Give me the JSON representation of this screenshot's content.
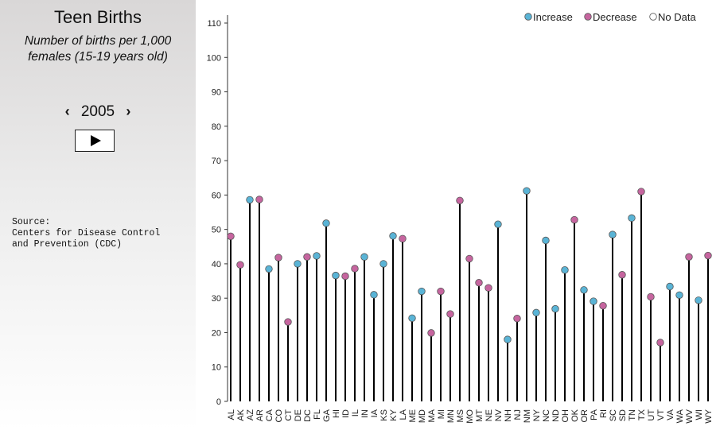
{
  "sidebar": {
    "title": "Teen Births",
    "subtitle_line1": "Number of births per 1,000",
    "subtitle_line2": "females (15-19 years old)",
    "prev_label": "‹",
    "next_label": "›",
    "year": "2005",
    "play_icon": "play-icon",
    "source": "Source:\nCenters for Disease Control\nand Prevention (CDC)"
  },
  "chart_data": {
    "type": "lollipop",
    "ylim": [
      0,
      110
    ],
    "yticks": [
      0,
      10,
      20,
      30,
      40,
      50,
      60,
      70,
      80,
      90,
      100,
      110
    ],
    "legend": [
      {
        "label": "Increase",
        "color": "#5ab4d6"
      },
      {
        "label": "Decrease",
        "color": "#c6659f"
      },
      {
        "label": "No Data",
        "color": "#ffffff"
      }
    ],
    "legend_position": "top-right",
    "points": [
      {
        "state": "AL",
        "value": 48,
        "status": "Decrease"
      },
      {
        "state": "AK",
        "value": 39.7,
        "status": "Decrease"
      },
      {
        "state": "AZ",
        "value": 58.6,
        "status": "Increase"
      },
      {
        "state": "AR",
        "value": 58.7,
        "status": "Decrease"
      },
      {
        "state": "CA",
        "value": 38.5,
        "status": "Increase"
      },
      {
        "state": "CO",
        "value": 41.8,
        "status": "Decrease"
      },
      {
        "state": "CT",
        "value": 23.1,
        "status": "Decrease"
      },
      {
        "state": "DE",
        "value": 40,
        "status": "Increase"
      },
      {
        "state": "DC",
        "value": 42,
        "status": "Decrease"
      },
      {
        "state": "FL",
        "value": 42.3,
        "status": "Increase"
      },
      {
        "state": "GA",
        "value": 51.8,
        "status": "Increase"
      },
      {
        "state": "HI",
        "value": 36.6,
        "status": "Increase"
      },
      {
        "state": "ID",
        "value": 36.4,
        "status": "Decrease"
      },
      {
        "state": "IL",
        "value": 38.6,
        "status": "Decrease"
      },
      {
        "state": "IN",
        "value": 42,
        "status": "Increase"
      },
      {
        "state": "IA",
        "value": 31,
        "status": "Increase"
      },
      {
        "state": "KS",
        "value": 40,
        "status": "Increase"
      },
      {
        "state": "KY",
        "value": 48.1,
        "status": "Increase"
      },
      {
        "state": "LA",
        "value": 47.3,
        "status": "Decrease"
      },
      {
        "state": "ME",
        "value": 24.2,
        "status": "Increase"
      },
      {
        "state": "MD",
        "value": 32,
        "status": "Increase"
      },
      {
        "state": "MA",
        "value": 19.9,
        "status": "Decrease"
      },
      {
        "state": "MI",
        "value": 32,
        "status": "Decrease"
      },
      {
        "state": "MN",
        "value": 25.4,
        "status": "Decrease"
      },
      {
        "state": "MS",
        "value": 58.4,
        "status": "Decrease"
      },
      {
        "state": "MO",
        "value": 41.5,
        "status": "Decrease"
      },
      {
        "state": "MT",
        "value": 34.5,
        "status": "Decrease"
      },
      {
        "state": "NE",
        "value": 33,
        "status": "Decrease"
      },
      {
        "state": "NV",
        "value": 51.5,
        "status": "Increase"
      },
      {
        "state": "NH",
        "value": 18,
        "status": "Increase"
      },
      {
        "state": "NJ",
        "value": 24.1,
        "status": "Decrease"
      },
      {
        "state": "NM",
        "value": 61.2,
        "status": "Increase"
      },
      {
        "state": "NY",
        "value": 25.8,
        "status": "Increase"
      },
      {
        "state": "NC",
        "value": 46.8,
        "status": "Increase"
      },
      {
        "state": "ND",
        "value": 26.9,
        "status": "Increase"
      },
      {
        "state": "OH",
        "value": 38.2,
        "status": "Increase"
      },
      {
        "state": "OK",
        "value": 52.8,
        "status": "Decrease"
      },
      {
        "state": "OR",
        "value": 32.4,
        "status": "Increase"
      },
      {
        "state": "PA",
        "value": 29.1,
        "status": "Increase"
      },
      {
        "state": "RI",
        "value": 27.8,
        "status": "Decrease"
      },
      {
        "state": "SC",
        "value": 48.5,
        "status": "Increase"
      },
      {
        "state": "SD",
        "value": 36.8,
        "status": "Decrease"
      },
      {
        "state": "TN",
        "value": 53.3,
        "status": "Increase"
      },
      {
        "state": "TX",
        "value": 61,
        "status": "Decrease"
      },
      {
        "state": "UT",
        "value": 30.4,
        "status": "Decrease"
      },
      {
        "state": "VT",
        "value": 17.1,
        "status": "Decrease"
      },
      {
        "state": "VA",
        "value": 33.4,
        "status": "Increase"
      },
      {
        "state": "WA",
        "value": 30.9,
        "status": "Increase"
      },
      {
        "state": "WV",
        "value": 42,
        "status": "Decrease"
      },
      {
        "state": "WI",
        "value": 29.4,
        "status": "Increase"
      },
      {
        "state": "WY",
        "value": 42.4,
        "status": "Decrease"
      }
    ]
  }
}
